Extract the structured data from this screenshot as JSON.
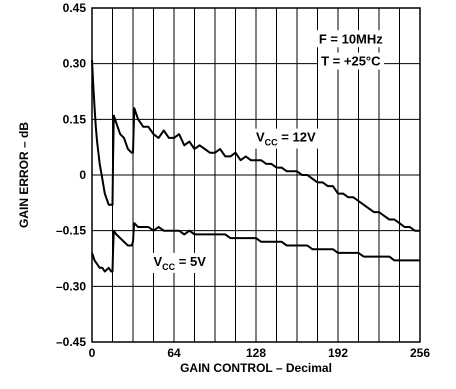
{
  "chart_data": {
    "type": "line",
    "xlabel": "GAIN CONTROL – Decimal",
    "ylabel": "GAIN ERROR – dB",
    "xlim": [
      0,
      256
    ],
    "ylim": [
      -0.45,
      0.45
    ],
    "x_ticks": [
      0,
      64,
      128,
      192,
      256
    ],
    "x_tick_labels": [
      "0",
      "64",
      "128",
      "192",
      "256"
    ],
    "y_ticks": [
      0.45,
      0.3,
      0.15,
      0,
      -0.15,
      -0.3,
      -0.45
    ],
    "y_tick_labels": [
      "0.45",
      "0.30",
      "0.15",
      "0",
      "–0.15",
      "–0.30",
      "–0.45"
    ],
    "grid": true,
    "annotations": {
      "freq": "F = 10MHz",
      "temp": "T = +25°C",
      "series_12v_main": "V",
      "series_12v_sub": "CC",
      "series_12v_rest": " = 12V",
      "series_5v_main": "V",
      "series_5v_sub": "CC",
      "series_5v_rest": " = 5V"
    },
    "series": [
      {
        "name": "VCC = 12V",
        "points": [
          [
            0,
            0.31
          ],
          [
            1,
            0.24
          ],
          [
            2,
            0.18
          ],
          [
            3,
            0.13
          ],
          [
            4,
            0.09
          ],
          [
            5,
            0.06
          ],
          [
            6,
            0.03
          ],
          [
            8,
            -0.01
          ],
          [
            10,
            -0.05
          ],
          [
            13,
            -0.08
          ],
          [
            15,
            -0.08
          ],
          [
            16,
            -0.08
          ],
          [
            16.5,
            0.05
          ],
          [
            17,
            0.16
          ],
          [
            19,
            0.14
          ],
          [
            22,
            0.11
          ],
          [
            25,
            0.1
          ],
          [
            28,
            0.07
          ],
          [
            31,
            0.06
          ],
          [
            32,
            0.06
          ],
          [
            32.5,
            0.12
          ],
          [
            33,
            0.18
          ],
          [
            36,
            0.15
          ],
          [
            40,
            0.13
          ],
          [
            44,
            0.13
          ],
          [
            48,
            0.11
          ],
          [
            52,
            0.1
          ],
          [
            56,
            0.12
          ],
          [
            60,
            0.1
          ],
          [
            64,
            0.1
          ],
          [
            68,
            0.11
          ],
          [
            72,
            0.08
          ],
          [
            76,
            0.09
          ],
          [
            80,
            0.07
          ],
          [
            84,
            0.08
          ],
          [
            88,
            0.07
          ],
          [
            92,
            0.06
          ],
          [
            96,
            0.06
          ],
          [
            100,
            0.07
          ],
          [
            104,
            0.05
          ],
          [
            108,
            0.05
          ],
          [
            112,
            0.06
          ],
          [
            116,
            0.04
          ],
          [
            120,
            0.05
          ],
          [
            124,
            0.04
          ],
          [
            128,
            0.04
          ],
          [
            132,
            0.04
          ],
          [
            136,
            0.03
          ],
          [
            140,
            0.03
          ],
          [
            144,
            0.02
          ],
          [
            148,
            0.02
          ],
          [
            152,
            0.01
          ],
          [
            156,
            0.01
          ],
          [
            160,
            0.01
          ],
          [
            164,
            0.0
          ],
          [
            168,
            0.0
          ],
          [
            172,
            -0.01
          ],
          [
            176,
            -0.02
          ],
          [
            180,
            -0.02
          ],
          [
            184,
            -0.03
          ],
          [
            188,
            -0.03
          ],
          [
            192,
            -0.05
          ],
          [
            196,
            -0.05
          ],
          [
            200,
            -0.06
          ],
          [
            204,
            -0.06
          ],
          [
            208,
            -0.07
          ],
          [
            212,
            -0.08
          ],
          [
            216,
            -0.09
          ],
          [
            220,
            -0.1
          ],
          [
            224,
            -0.1
          ],
          [
            228,
            -0.11
          ],
          [
            232,
            -0.12
          ],
          [
            236,
            -0.12
          ],
          [
            240,
            -0.13
          ],
          [
            244,
            -0.14
          ],
          [
            248,
            -0.14
          ],
          [
            252,
            -0.15
          ],
          [
            256,
            -0.15
          ]
        ]
      },
      {
        "name": "VCC = 5V",
        "points": [
          [
            0,
            -0.21
          ],
          [
            2,
            -0.23
          ],
          [
            4,
            -0.24
          ],
          [
            6,
            -0.25
          ],
          [
            8,
            -0.25
          ],
          [
            10,
            -0.26
          ],
          [
            13,
            -0.25
          ],
          [
            15,
            -0.26
          ],
          [
            16,
            -0.26
          ],
          [
            16.5,
            -0.2
          ],
          [
            17,
            -0.15
          ],
          [
            19,
            -0.16
          ],
          [
            22,
            -0.17
          ],
          [
            25,
            -0.18
          ],
          [
            28,
            -0.19
          ],
          [
            31,
            -0.19
          ],
          [
            32,
            -0.18
          ],
          [
            32.5,
            -0.15
          ],
          [
            33,
            -0.13
          ],
          [
            36,
            -0.14
          ],
          [
            40,
            -0.14
          ],
          [
            44,
            -0.14
          ],
          [
            48,
            -0.15
          ],
          [
            52,
            -0.14
          ],
          [
            56,
            -0.15
          ],
          [
            60,
            -0.15
          ],
          [
            64,
            -0.15
          ],
          [
            68,
            -0.15
          ],
          [
            72,
            -0.16
          ],
          [
            76,
            -0.15
          ],
          [
            80,
            -0.16
          ],
          [
            84,
            -0.16
          ],
          [
            88,
            -0.16
          ],
          [
            92,
            -0.16
          ],
          [
            96,
            -0.16
          ],
          [
            100,
            -0.16
          ],
          [
            104,
            -0.16
          ],
          [
            108,
            -0.17
          ],
          [
            112,
            -0.17
          ],
          [
            116,
            -0.17
          ],
          [
            120,
            -0.17
          ],
          [
            124,
            -0.17
          ],
          [
            128,
            -0.17
          ],
          [
            132,
            -0.18
          ],
          [
            136,
            -0.18
          ],
          [
            140,
            -0.18
          ],
          [
            144,
            -0.18
          ],
          [
            148,
            -0.18
          ],
          [
            152,
            -0.19
          ],
          [
            156,
            -0.19
          ],
          [
            160,
            -0.19
          ],
          [
            164,
            -0.19
          ],
          [
            168,
            -0.19
          ],
          [
            172,
            -0.2
          ],
          [
            176,
            -0.2
          ],
          [
            180,
            -0.2
          ],
          [
            184,
            -0.2
          ],
          [
            188,
            -0.2
          ],
          [
            192,
            -0.21
          ],
          [
            196,
            -0.21
          ],
          [
            200,
            -0.21
          ],
          [
            204,
            -0.21
          ],
          [
            208,
            -0.21
          ],
          [
            212,
            -0.22
          ],
          [
            216,
            -0.22
          ],
          [
            220,
            -0.22
          ],
          [
            224,
            -0.22
          ],
          [
            228,
            -0.22
          ],
          [
            232,
            -0.22
          ],
          [
            236,
            -0.23
          ],
          [
            240,
            -0.23
          ],
          [
            244,
            -0.23
          ],
          [
            248,
            -0.23
          ],
          [
            252,
            -0.23
          ],
          [
            256,
            -0.23
          ]
        ]
      }
    ]
  }
}
